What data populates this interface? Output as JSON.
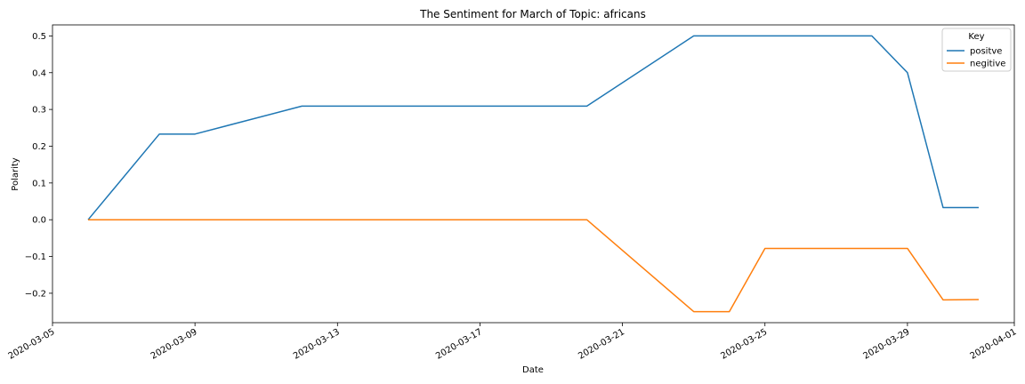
{
  "chart_data": {
    "type": "line",
    "title": "The Sentiment for March of Topic: africans",
    "xlabel": "Date",
    "ylabel": "Polarity",
    "x_tick_labels": [
      "2020-03-05",
      "2020-03-09",
      "2020-03-13",
      "2020-03-17",
      "2020-03-21",
      "2020-03-25",
      "2020-03-29",
      "2020-04-01"
    ],
    "y_tick_labels": [
      "−0.2",
      "−0.1",
      "0.0",
      "0.1",
      "0.2",
      "0.3",
      "0.4",
      "0.5"
    ],
    "y_ticks": [
      -0.2,
      -0.1,
      0.0,
      0.1,
      0.2,
      0.3,
      0.4,
      0.5
    ],
    "xlim": [
      "2020-03-05",
      "2020-04-01"
    ],
    "ylim": [
      -0.28,
      0.53
    ],
    "legend": {
      "title": "Key",
      "position": "top-right"
    },
    "grid": false,
    "series": [
      {
        "name": "positve",
        "color": "#1f77b4",
        "points": [
          [
            "2020-03-06",
            0.0
          ],
          [
            "2020-03-08",
            0.233
          ],
          [
            "2020-03-09",
            0.233
          ],
          [
            "2020-03-12",
            0.309
          ],
          [
            "2020-03-20",
            0.309
          ],
          [
            "2020-03-23",
            0.5
          ],
          [
            "2020-03-28",
            0.5
          ],
          [
            "2020-03-29",
            0.4
          ],
          [
            "2020-03-30",
            0.033
          ],
          [
            "2020-03-31",
            0.033
          ]
        ]
      },
      {
        "name": "negitive",
        "color": "#ff7f0e",
        "points": [
          [
            "2020-03-06",
            0.0
          ],
          [
            "2020-03-20",
            0.0
          ],
          [
            "2020-03-23",
            -0.25
          ],
          [
            "2020-03-24",
            -0.25
          ],
          [
            "2020-03-25",
            -0.078
          ],
          [
            "2020-03-29",
            -0.078
          ],
          [
            "2020-03-30",
            -0.218
          ],
          [
            "2020-03-31",
            -0.217
          ]
        ]
      }
    ]
  }
}
